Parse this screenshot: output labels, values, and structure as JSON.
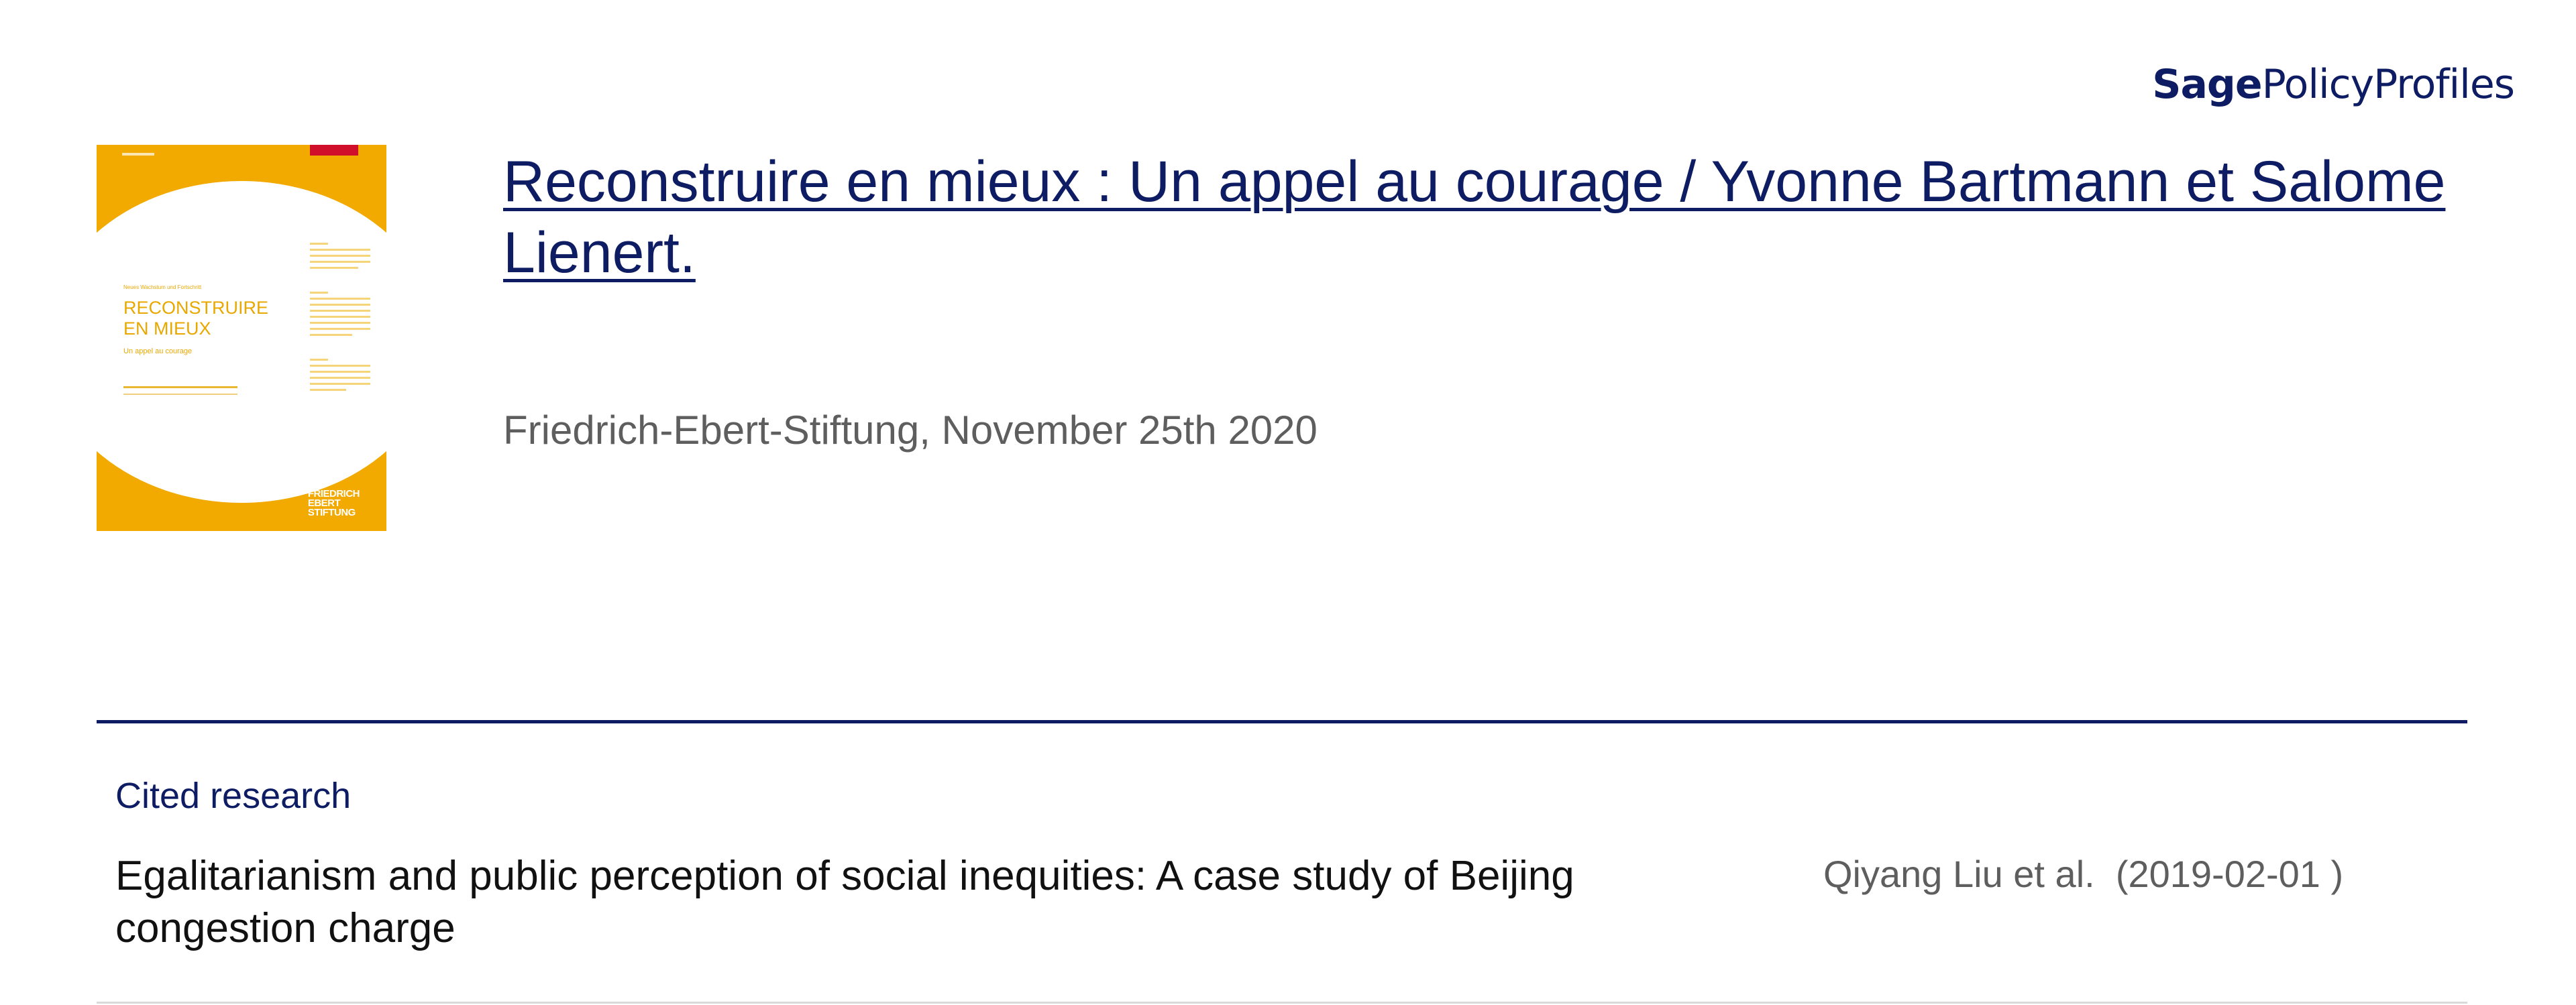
{
  "brand": {
    "sage": "Sage",
    "policy_profiles": "PolicyProfiles",
    "color": "#0e1d63"
  },
  "cover": {
    "kicker": "Neues Wachstum und Fortschritt",
    "title_line1": "RECONSTRUIRE",
    "title_line2": "EN MIEUX",
    "subtitle": "Un appel au courage",
    "publisher_line1": "FRIEDRICH",
    "publisher_line2": "EBERT",
    "publisher_line3": "STIFTUNG",
    "background_color": "#f2aa00",
    "accent_color": "#d0102a"
  },
  "document": {
    "title": "Reconstruire en mieux : Un appel au courage / Yvonne Bartmann et Salome Lienert.",
    "publisher_date": "Friedrich-Ebert-Stiftung, November 25th 2020"
  },
  "cited_research": {
    "heading": "Cited research",
    "items": [
      {
        "title": "Egalitarianism and public perception of social inequities: A case study of Beijing congestion charge",
        "authors": "Qiyang Liu et al.",
        "date": "(2019-02-01 )"
      }
    ]
  }
}
